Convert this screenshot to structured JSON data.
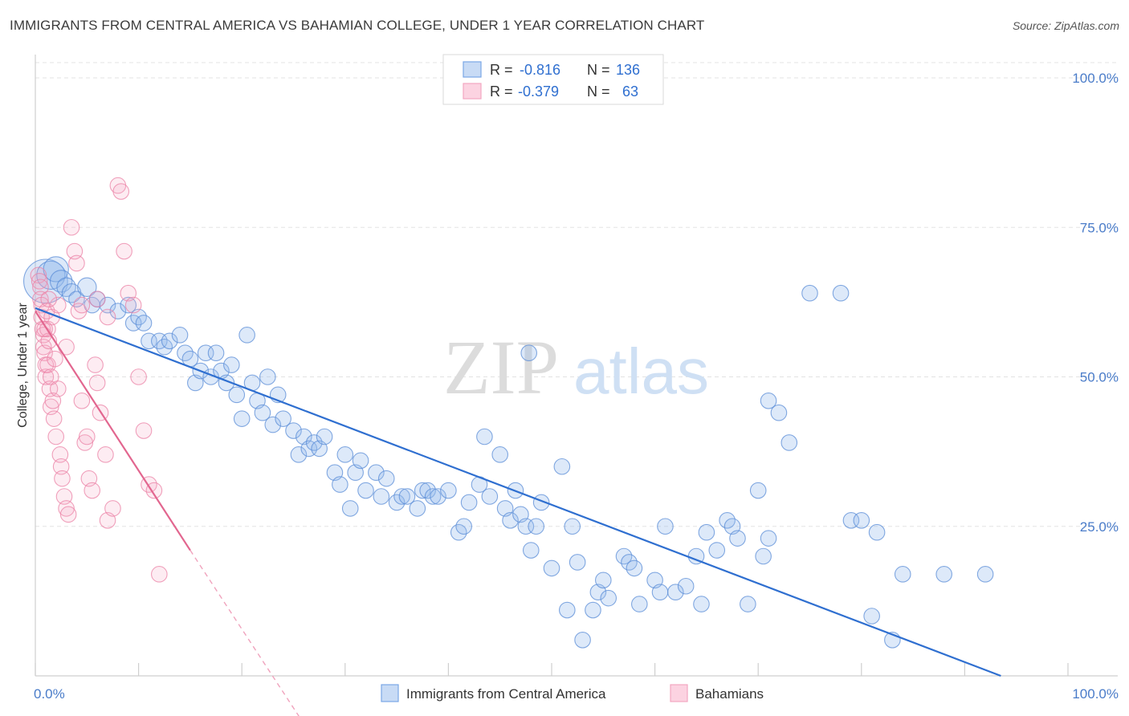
{
  "header": {
    "title": "IMMIGRANTS FROM CENTRAL AMERICA VS BAHAMIAN COLLEGE, UNDER 1 YEAR CORRELATION CHART",
    "source": "Source: ZipAtlas.com"
  },
  "watermark": {
    "zip": "ZIP",
    "atlas": "atlas"
  },
  "legend": {
    "r_label": "R =",
    "n_label": "N =",
    "rows": [
      {
        "r": "-0.816",
        "n": "136",
        "color": "#7aa7e6"
      },
      {
        "r": "-0.379",
        "n": "63",
        "color": "#f3a6c0"
      }
    ]
  },
  "chart_data": {
    "type": "scatter",
    "title": "IMMIGRANTS FROM CENTRAL AMERICA VS BAHAMIAN COLLEGE, UNDER 1 YEAR CORRELATION CHART",
    "xlabel": "",
    "ylabel": "College, Under 1 year",
    "xlim": [
      0,
      100
    ],
    "ylim": [
      0,
      105
    ],
    "x_tick_labels": [
      "0.0%",
      "100.0%"
    ],
    "y_tick_labels": [
      "25.0%",
      "50.0%",
      "75.0%",
      "100.0%"
    ],
    "y_ticks": [
      25,
      50,
      75,
      100
    ],
    "grid": true,
    "series": [
      {
        "name": "Immigrants from Central America",
        "color": "#6b9be0",
        "trend": {
          "x0": 0,
          "y0": 61.5,
          "x1": 93.5,
          "y1": 0
        },
        "points": [
          [
            1,
            66,
            14
          ],
          [
            1.5,
            67,
            9
          ],
          [
            2,
            68,
            8
          ],
          [
            2.5,
            66,
            7
          ],
          [
            3,
            65,
            6
          ],
          [
            3.5,
            64,
            6
          ],
          [
            4,
            63,
            5
          ],
          [
            5,
            65,
            6
          ],
          [
            5.5,
            62,
            5
          ],
          [
            6,
            63,
            5
          ],
          [
            7,
            62,
            5
          ],
          [
            8,
            61,
            5
          ],
          [
            9,
            62,
            5
          ],
          [
            9.5,
            59,
            5
          ],
          [
            10,
            60,
            5
          ],
          [
            10.5,
            59,
            5
          ],
          [
            11,
            56,
            5
          ],
          [
            12,
            56,
            5
          ],
          [
            12.5,
            55,
            5
          ],
          [
            13,
            56,
            5
          ],
          [
            14,
            57,
            5
          ],
          [
            14.5,
            54,
            5
          ],
          [
            15,
            53,
            5
          ],
          [
            15.5,
            49,
            5
          ],
          [
            16,
            51,
            5
          ],
          [
            16.5,
            54,
            5
          ],
          [
            17,
            50,
            5
          ],
          [
            17.5,
            54,
            5
          ],
          [
            18,
            51,
            5
          ],
          [
            18.5,
            49,
            5
          ],
          [
            19,
            52,
            5
          ],
          [
            19.5,
            47,
            5
          ],
          [
            20,
            43,
            5
          ],
          [
            20.5,
            57,
            5
          ],
          [
            21,
            49,
            5
          ],
          [
            21.5,
            46,
            5
          ],
          [
            22,
            44,
            5
          ],
          [
            22.5,
            50,
            5
          ],
          [
            23,
            42,
            5
          ],
          [
            23.5,
            47,
            5
          ],
          [
            24,
            43,
            5
          ],
          [
            25,
            41,
            5
          ],
          [
            25.5,
            37,
            5
          ],
          [
            26,
            40,
            5
          ],
          [
            26.5,
            38,
            5
          ],
          [
            27,
            39,
            5
          ],
          [
            27.5,
            38,
            5
          ],
          [
            28,
            40,
            5
          ],
          [
            29,
            34,
            5
          ],
          [
            29.5,
            32,
            5
          ],
          [
            30,
            37,
            5
          ],
          [
            30.5,
            28,
            5
          ],
          [
            31,
            34,
            5
          ],
          [
            31.5,
            36,
            5
          ],
          [
            32,
            31,
            5
          ],
          [
            33,
            34,
            5
          ],
          [
            33.5,
            30,
            5
          ],
          [
            34,
            33,
            5
          ],
          [
            35,
            29,
            5
          ],
          [
            35.5,
            30,
            5
          ],
          [
            36,
            30,
            5
          ],
          [
            37,
            28,
            5
          ],
          [
            37.5,
            31,
            5
          ],
          [
            38,
            31,
            5
          ],
          [
            38.5,
            30,
            5
          ],
          [
            39,
            30,
            5
          ],
          [
            40,
            31,
            5
          ],
          [
            41,
            24,
            5
          ],
          [
            41.5,
            25,
            5
          ],
          [
            42,
            29,
            5
          ],
          [
            43,
            32,
            5
          ],
          [
            43.5,
            40,
            5
          ],
          [
            44,
            30,
            5
          ],
          [
            45,
            37,
            5
          ],
          [
            45.5,
            28,
            5
          ],
          [
            46,
            26,
            5
          ],
          [
            46.5,
            31,
            5
          ],
          [
            47,
            27,
            5
          ],
          [
            47.5,
            25,
            5
          ],
          [
            48,
            21,
            5
          ],
          [
            48.5,
            25,
            5
          ],
          [
            49,
            29,
            5
          ],
          [
            47.8,
            54,
            5
          ],
          [
            50,
            18,
            5
          ],
          [
            51,
            35,
            5
          ],
          [
            51.5,
            11,
            5
          ],
          [
            52,
            25,
            5
          ],
          [
            52.5,
            19,
            5
          ],
          [
            53,
            6,
            5
          ],
          [
            54,
            11,
            5
          ],
          [
            54.5,
            14,
            5
          ],
          [
            55,
            16,
            5
          ],
          [
            55.5,
            13,
            5
          ],
          [
            57,
            20,
            5
          ],
          [
            57.5,
            19,
            5
          ],
          [
            58,
            18,
            5
          ],
          [
            58.5,
            12,
            5
          ],
          [
            60,
            16,
            5
          ],
          [
            60.5,
            14,
            5
          ],
          [
            61,
            25,
            5
          ],
          [
            62,
            14,
            5
          ],
          [
            63,
            15,
            5
          ],
          [
            64,
            20,
            5
          ],
          [
            64.5,
            12,
            5
          ],
          [
            65,
            24,
            5
          ],
          [
            66,
            21,
            5
          ],
          [
            67,
            26,
            5
          ],
          [
            67.5,
            25,
            5
          ],
          [
            68,
            23,
            5
          ],
          [
            69,
            12,
            5
          ],
          [
            70,
            31,
            5
          ],
          [
            70.5,
            20,
            5
          ],
          [
            71,
            23,
            5
          ],
          [
            75,
            64,
            5
          ],
          [
            78,
            64,
            5
          ],
          [
            72,
            44,
            5
          ],
          [
            71,
            46,
            5
          ],
          [
            73,
            39,
            5
          ],
          [
            79,
            26,
            5
          ],
          [
            80,
            26,
            5
          ],
          [
            81,
            10,
            5
          ],
          [
            81.5,
            24,
            5
          ],
          [
            83,
            6,
            5
          ],
          [
            84,
            17,
            5
          ],
          [
            88,
            17,
            5
          ],
          [
            92,
            17,
            5
          ]
        ]
      },
      {
        "name": "Bahamians",
        "color": "#ef86a8",
        "trend": {
          "x0": 0,
          "y0": 61,
          "x1": 15,
          "y1": 21,
          "dash_x1": 26,
          "dash_y1": -8
        },
        "points": [
          [
            0.3,
            67,
            5
          ],
          [
            0.4,
            66,
            5
          ],
          [
            0.5,
            65,
            5
          ],
          [
            0.5,
            63,
            5
          ],
          [
            0.6,
            62,
            5
          ],
          [
            0.6,
            60,
            5
          ],
          [
            0.7,
            58,
            5
          ],
          [
            0.8,
            57,
            5
          ],
          [
            0.8,
            55,
            5
          ],
          [
            0.9,
            54,
            5
          ],
          [
            1,
            52,
            5
          ],
          [
            1,
            50,
            5
          ],
          [
            1.1,
            61,
            5
          ],
          [
            1.2,
            58,
            5
          ],
          [
            1.2,
            52,
            5
          ],
          [
            1.3,
            56,
            5
          ],
          [
            1.4,
            48,
            5
          ],
          [
            1.5,
            50,
            5
          ],
          [
            1.5,
            45,
            5
          ],
          [
            1.6,
            60,
            5
          ],
          [
            1.7,
            46,
            5
          ],
          [
            1.8,
            43,
            5
          ],
          [
            2,
            40,
            5
          ],
          [
            2.2,
            62,
            5
          ],
          [
            2.4,
            37,
            5
          ],
          [
            2.5,
            35,
            5
          ],
          [
            2.6,
            33,
            5
          ],
          [
            2.8,
            30,
            5
          ],
          [
            3,
            28,
            5
          ],
          [
            3.2,
            27,
            5
          ],
          [
            3.5,
            75,
            5
          ],
          [
            3.8,
            71,
            5
          ],
          [
            4,
            69,
            5
          ],
          [
            4.2,
            61,
            5
          ],
          [
            4.5,
            46,
            5
          ],
          [
            4.8,
            39,
            5
          ],
          [
            5,
            40,
            5
          ],
          [
            5.2,
            33,
            5
          ],
          [
            5.5,
            31,
            5
          ],
          [
            6,
            49,
            5
          ],
          [
            6.3,
            44,
            5
          ],
          [
            6.8,
            37,
            5
          ],
          [
            7,
            26,
            5
          ],
          [
            7.5,
            28,
            5
          ],
          [
            8,
            82,
            5
          ],
          [
            8.3,
            81,
            5
          ],
          [
            8.6,
            71,
            5
          ],
          [
            9,
            64,
            5
          ],
          [
            9.5,
            62,
            5
          ],
          [
            10,
            50,
            5
          ],
          [
            10.5,
            41,
            5
          ],
          [
            11,
            32,
            5
          ],
          [
            11.5,
            31,
            5
          ],
          [
            12,
            17,
            5
          ],
          [
            5.8,
            52,
            5
          ],
          [
            2.2,
            48,
            5
          ],
          [
            1.9,
            53,
            5
          ],
          [
            0.9,
            58,
            5
          ],
          [
            3,
            55,
            5
          ],
          [
            4.5,
            62,
            5
          ],
          [
            6,
            63,
            5
          ],
          [
            7,
            60,
            5
          ],
          [
            1.3,
            63,
            5
          ]
        ]
      }
    ]
  },
  "bottom_legend": [
    {
      "label": "Immigrants from Central America",
      "color": "#7aa7e6"
    },
    {
      "label": "Bahamians",
      "color": "#f3a6c0"
    }
  ]
}
